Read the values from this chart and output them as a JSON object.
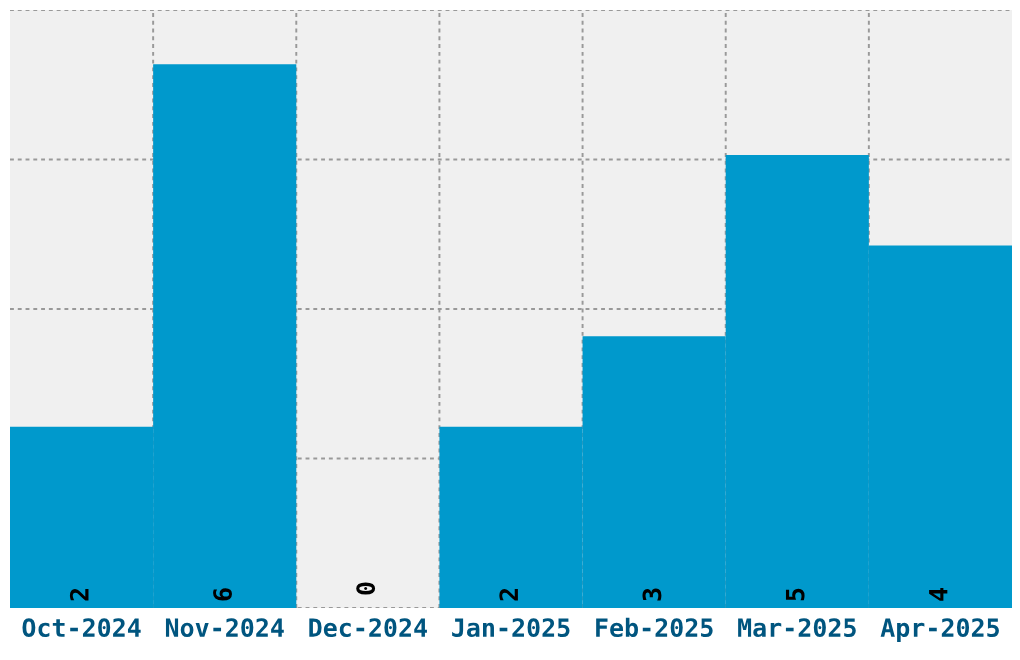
{
  "chart_data": {
    "type": "bar",
    "categories": [
      "Oct-2024",
      "Nov-2024",
      "Dec-2024",
      "Jan-2025",
      "Feb-2025",
      "Mar-2025",
      "Apr-2025"
    ],
    "values": [
      2,
      6,
      0,
      2,
      3,
      5,
      4
    ],
    "color": "#0099cc",
    "ylim": [
      0,
      6.6
    ],
    "yticks": [
      {
        "value": 0,
        "label": null
      },
      {
        "value": 1.65,
        "label": null
      },
      {
        "value": 3.3,
        "label": null
      },
      {
        "value": 4.95,
        "label": null
      },
      {
        "value": 6.6,
        "label": null
      }
    ],
    "tick_labels": "x",
    "grid": true,
    "data_labels": true
  }
}
